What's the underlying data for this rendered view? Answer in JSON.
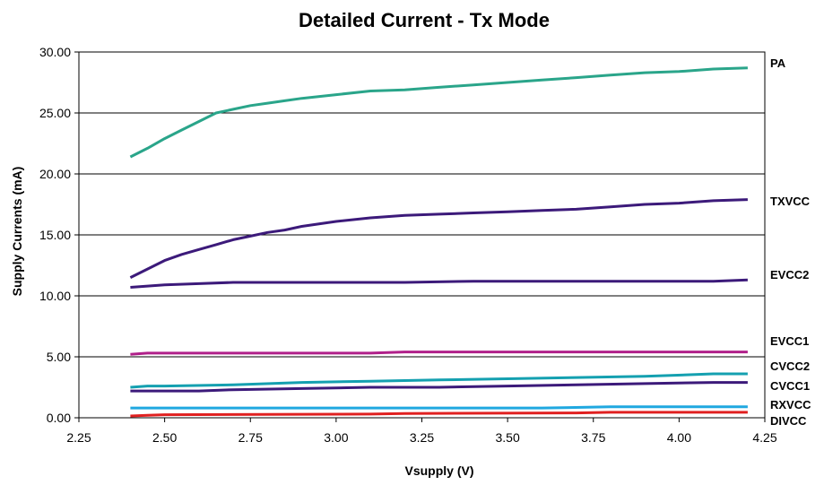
{
  "chart_data": {
    "type": "line",
    "title": "Detailed Current - Tx Mode",
    "xlabel": "Vsupply (V)",
    "ylabel": "Supply Currents (mA)",
    "xlim": [
      2.25,
      4.25
    ],
    "ylim": [
      0,
      30
    ],
    "x_ticks": [
      "2.25",
      "2.50",
      "2.75",
      "3.00",
      "3.25",
      "3.50",
      "3.75",
      "4.00",
      "4.25"
    ],
    "y_ticks": [
      "0.00",
      "5.00",
      "10.00",
      "15.00",
      "20.00",
      "25.00",
      "30.00"
    ],
    "grid": "horizontal",
    "legend": "labels at right end of each line",
    "series": [
      {
        "name": "PA",
        "color": "#2aa58a",
        "x": [
          2.4,
          2.45,
          2.5,
          2.55,
          2.6,
          2.65,
          2.7,
          2.75,
          2.8,
          2.85,
          2.9,
          3.0,
          3.1,
          3.2,
          3.3,
          3.4,
          3.5,
          3.6,
          3.7,
          3.8,
          3.9,
          4.0,
          4.1,
          4.2
        ],
        "y": [
          21.4,
          22.1,
          22.9,
          23.6,
          24.3,
          25.0,
          25.3,
          25.6,
          25.8,
          26.0,
          26.2,
          26.5,
          26.8,
          26.9,
          27.1,
          27.3,
          27.5,
          27.7,
          27.9,
          28.1,
          28.3,
          28.4,
          28.6,
          28.7
        ]
      },
      {
        "name": "TXVCC",
        "color": "#3c1a7a",
        "x": [
          2.4,
          2.45,
          2.5,
          2.55,
          2.6,
          2.65,
          2.7,
          2.75,
          2.8,
          2.85,
          2.9,
          3.0,
          3.1,
          3.2,
          3.3,
          3.4,
          3.5,
          3.6,
          3.7,
          3.8,
          3.9,
          4.0,
          4.1,
          4.2
        ],
        "y": [
          11.5,
          12.2,
          12.9,
          13.4,
          13.8,
          14.2,
          14.6,
          14.9,
          15.2,
          15.4,
          15.7,
          16.1,
          16.4,
          16.6,
          16.7,
          16.8,
          16.9,
          17.0,
          17.1,
          17.3,
          17.5,
          17.6,
          17.8,
          17.9
        ]
      },
      {
        "name": "EVCC2",
        "color": "#3c1a7a",
        "x": [
          2.4,
          2.45,
          2.5,
          2.6,
          2.7,
          2.8,
          3.0,
          3.2,
          3.4,
          3.6,
          3.8,
          4.0,
          4.1,
          4.2
        ],
        "y": [
          10.7,
          10.8,
          10.9,
          11.0,
          11.1,
          11.1,
          11.1,
          11.1,
          11.2,
          11.2,
          11.2,
          11.2,
          11.2,
          11.3
        ]
      },
      {
        "name": "EVCC1",
        "color": "#b0208a",
        "x": [
          2.4,
          2.45,
          2.5,
          2.8,
          3.1,
          3.2,
          3.5,
          3.8,
          4.2
        ],
        "y": [
          5.2,
          5.3,
          5.3,
          5.3,
          5.3,
          5.4,
          5.4,
          5.4,
          5.4
        ]
      },
      {
        "name": "CVCC2",
        "color": "#14a0b0",
        "x": [
          2.4,
          2.45,
          2.5,
          2.7,
          2.9,
          3.1,
          3.3,
          3.5,
          3.7,
          3.9,
          4.1,
          4.2
        ],
        "y": [
          2.5,
          2.6,
          2.6,
          2.7,
          2.9,
          3.0,
          3.1,
          3.2,
          3.3,
          3.4,
          3.6,
          3.6
        ]
      },
      {
        "name": "CVCC1",
        "color": "#3c1a7a",
        "x": [
          2.4,
          2.5,
          2.6,
          2.7,
          2.9,
          3.1,
          3.3,
          3.5,
          3.7,
          3.9,
          4.1,
          4.2
        ],
        "y": [
          2.2,
          2.2,
          2.2,
          2.3,
          2.4,
          2.5,
          2.5,
          2.6,
          2.7,
          2.8,
          2.9,
          2.9
        ]
      },
      {
        "name": "RXVCC",
        "color": "#20a8e0",
        "x": [
          2.4,
          2.8,
          3.2,
          3.6,
          3.8,
          4.2
        ],
        "y": [
          0.8,
          0.8,
          0.8,
          0.8,
          0.9,
          0.9
        ]
      },
      {
        "name": "DIVCC",
        "color": "#e02020",
        "x": [
          2.4,
          2.45,
          2.5,
          3.1,
          3.2,
          3.7,
          3.8,
          4.2
        ],
        "y": [
          0.15,
          0.2,
          0.25,
          0.3,
          0.35,
          0.4,
          0.45,
          0.45
        ]
      }
    ]
  }
}
